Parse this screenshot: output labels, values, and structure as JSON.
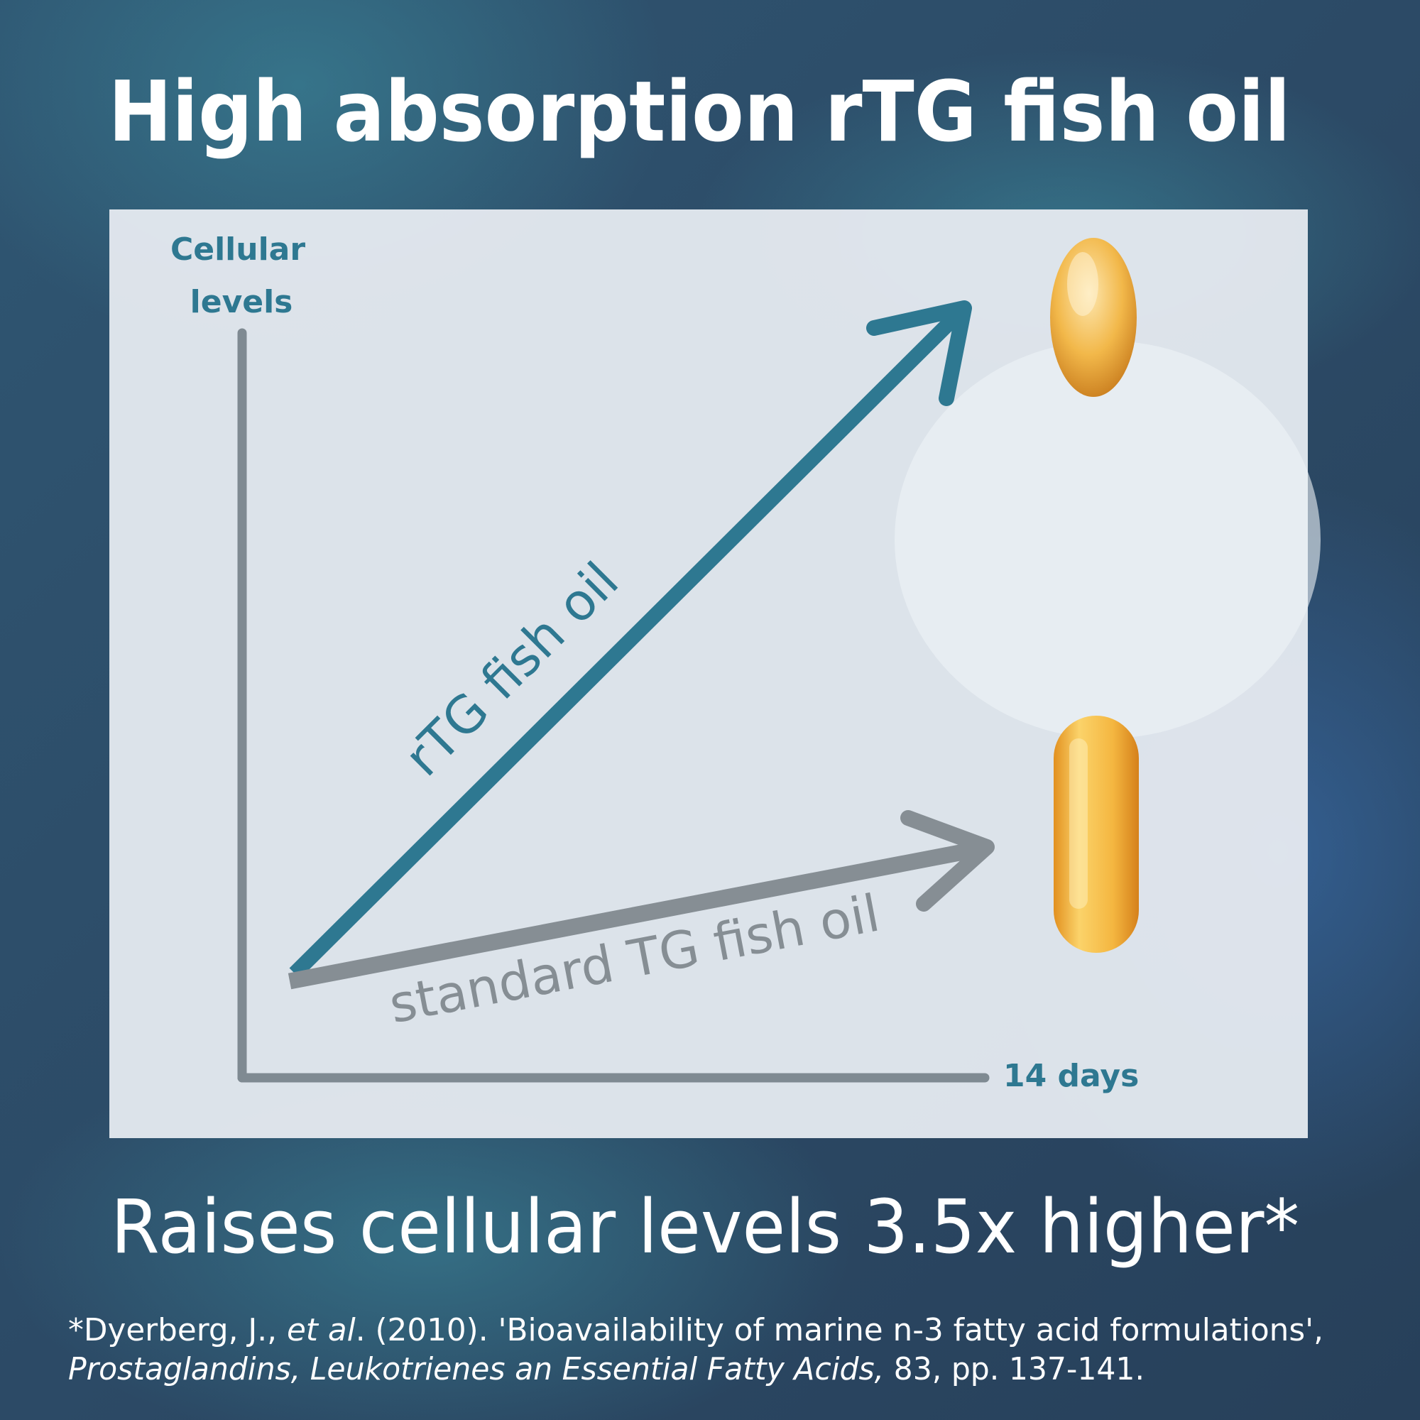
{
  "title": "High absorption rTG fish oil",
  "chart": {
    "y_axis_label_line1": "Cellular",
    "y_axis_label_line2": "levels",
    "x_axis_label": "14 days",
    "rtg_label": "rTG fish oil",
    "standard_label": "standard TG fish oil"
  },
  "subtitle": "Raises cellular levels 3.5x higher*",
  "footnote": {
    "line1_a": "*Dyerberg, J., ",
    "line1_b": "et al",
    "line1_c": ". (2010). 'Bioavailability of marine n-3 fatty acid formulations',",
    "line2_a": "Prostaglandins, Leukotrienes an Essential Fatty Acids,",
    "line2_b": " 83, pp. 137-141."
  },
  "chart_data": {
    "type": "line",
    "title": "",
    "ylabel": "Cellular levels",
    "xlabel": "14 days",
    "series": [
      {
        "name": "rTG fish oil",
        "relative_rise": 3.5
      },
      {
        "name": "standard TG fish oil",
        "relative_rise": 1
      }
    ]
  },
  "colors": {
    "background": "#2c4a66",
    "panel": "#e4e9ef",
    "accent_teal": "#2e7891",
    "gray": "#868e94",
    "capsule": "#f2b84a"
  },
  "icons": [
    "oval-capsule-icon",
    "oblong-softgel-icon"
  ]
}
